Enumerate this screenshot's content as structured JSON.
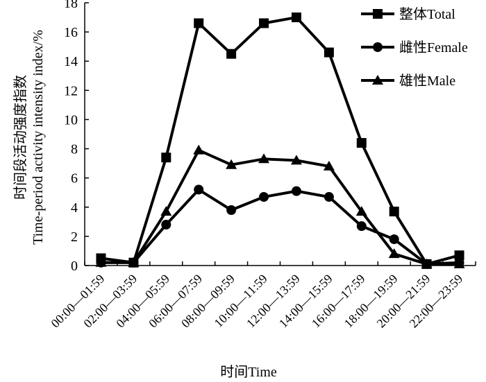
{
  "chart_data": {
    "type": "line",
    "title": "",
    "xlabel": "时间Time",
    "ylabel_line1": "时间段活动强度指数",
    "ylabel_line2": "Time-period activity intensity index/%",
    "ylim": [
      0,
      18
    ],
    "yticks": [
      0,
      2,
      4,
      6,
      8,
      10,
      12,
      14,
      16,
      18
    ],
    "grid": false,
    "legend_position": "top-right",
    "categories": [
      "00:00—01:59",
      "02:00—03:59",
      "04:00—05:59",
      "06:00—07:59",
      "08:00—09:59",
      "10:00—11:59",
      "12:00—13:59",
      "14:00—15:59",
      "16:00—17:59",
      "18:00—19:59",
      "20:00—21:59",
      "22:00—23:59"
    ],
    "series": [
      {
        "name": "整体Total",
        "marker": "square",
        "color": "#000000",
        "values": [
          0.5,
          0.2,
          7.4,
          16.6,
          14.5,
          16.6,
          17.0,
          14.6,
          8.4,
          3.7,
          0.1,
          0.7
        ]
      },
      {
        "name": "雌性Female",
        "marker": "circle",
        "color": "#000000",
        "values": [
          0.2,
          0.2,
          2.8,
          5.2,
          3.8,
          4.7,
          5.1,
          4.7,
          2.7,
          1.8,
          0.1,
          0.2
        ]
      },
      {
        "name": "雄性Male",
        "marker": "triangle",
        "color": "#000000",
        "values": [
          0.2,
          0.2,
          3.7,
          7.9,
          6.9,
          7.3,
          7.2,
          6.8,
          3.7,
          0.8,
          0.1,
          0.1
        ]
      }
    ]
  }
}
